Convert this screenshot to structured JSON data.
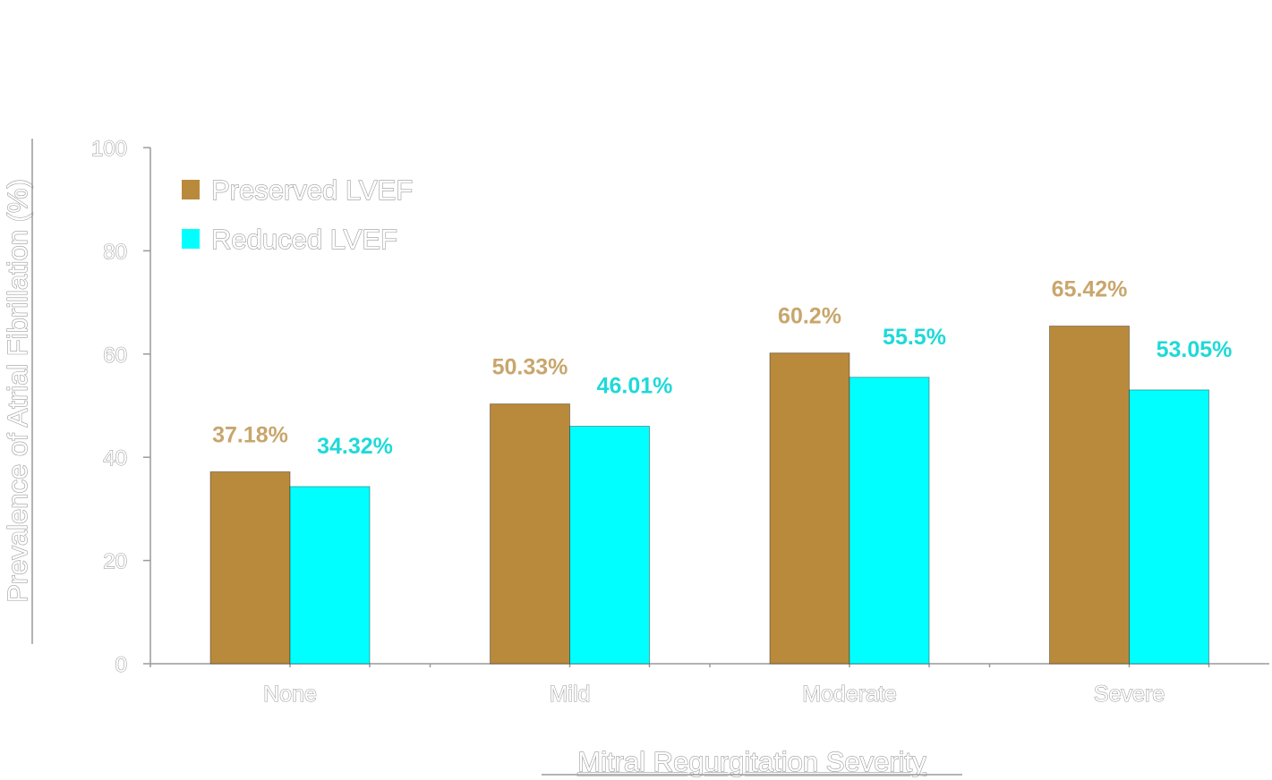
{
  "chart_data": {
    "type": "bar",
    "title": "",
    "xlabel": "Mitral Regurgitation Severity",
    "ylabel": "Prevalence of Atrial Fibrillation (%)",
    "ylim": [
      0,
      100
    ],
    "yticks": [
      "0",
      "20",
      "40",
      "60",
      "80",
      "100"
    ],
    "categories": [
      "None",
      "Mild",
      "Moderate",
      "Severe"
    ],
    "series": [
      {
        "name": "Preserved LVEF",
        "color": "#b98a3c",
        "label_color": "#c8a66c",
        "values": [
          37.18,
          50.33,
          60.2,
          65.42
        ],
        "labels": [
          "37.18%",
          "50.33%",
          "60.2%",
          "65.42%"
        ]
      },
      {
        "name": "Reduced LVEF",
        "color": "#00ffff",
        "label_color": "#1fd9d9",
        "values": [
          34.32,
          46.01,
          55.5,
          53.05
        ],
        "labels": [
          "34.32%",
          "46.01%",
          "55.5%",
          "53.05%"
        ]
      }
    ],
    "legend_position": "top-left",
    "grid": false
  }
}
